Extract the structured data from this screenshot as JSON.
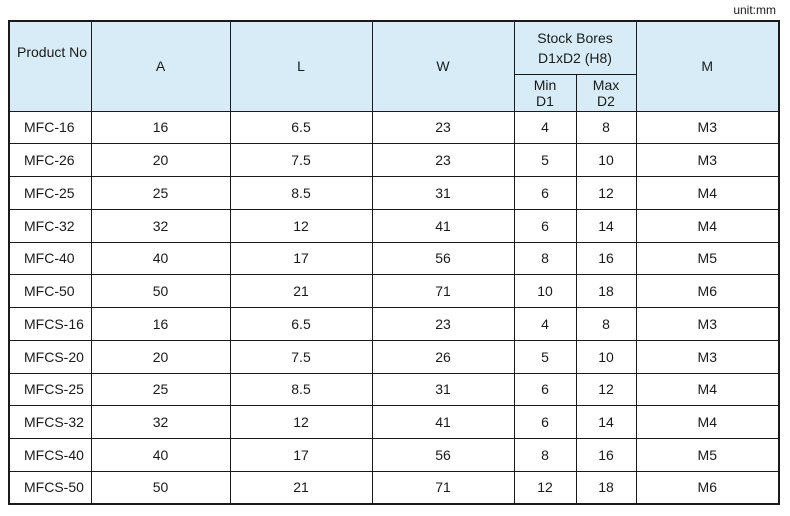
{
  "unit_label": "unit:mm",
  "headers": {
    "product_no": "Product No",
    "a": "A",
    "l": "L",
    "w": "W",
    "stock_bores_line1": "Stock Bores",
    "stock_bores_line2": "D1xD2 (H8)",
    "min_line1": "Min",
    "min_line2": "D1",
    "max_line1": "Max",
    "max_line2": "D2",
    "m": "M"
  },
  "rows": [
    {
      "product": "MFC-16",
      "a": "16",
      "l": "6.5",
      "w": "23",
      "min": "4",
      "max": "8",
      "m": "M3"
    },
    {
      "product": "MFC-26",
      "a": "20",
      "l": "7.5",
      "w": "23",
      "min": "5",
      "max": "10",
      "m": "M3"
    },
    {
      "product": "MFC-25",
      "a": "25",
      "l": "8.5",
      "w": "31",
      "min": "6",
      "max": "12",
      "m": "M4"
    },
    {
      "product": "MFC-32",
      "a": "32",
      "l": "12",
      "w": "41",
      "min": "6",
      "max": "14",
      "m": "M4"
    },
    {
      "product": "MFC-40",
      "a": "40",
      "l": "17",
      "w": "56",
      "min": "8",
      "max": "16",
      "m": "M5"
    },
    {
      "product": "MFC-50",
      "a": "50",
      "l": "21",
      "w": "71",
      "min": "10",
      "max": "18",
      "m": "M6"
    },
    {
      "product": "MFCS-16",
      "a": "16",
      "l": "6.5",
      "w": "23",
      "min": "4",
      "max": "8",
      "m": "M3"
    },
    {
      "product": "MFCS-20",
      "a": "20",
      "l": "7.5",
      "w": "26",
      "min": "5",
      "max": "10",
      "m": "M3"
    },
    {
      "product": "MFCS-25",
      "a": "25",
      "l": "8.5",
      "w": "31",
      "min": "6",
      "max": "12",
      "m": "M4"
    },
    {
      "product": "MFCS-32",
      "a": "32",
      "l": "12",
      "w": "41",
      "min": "6",
      "max": "14",
      "m": "M4"
    },
    {
      "product": "MFCS-40",
      "a": "40",
      "l": "17",
      "w": "56",
      "min": "8",
      "max": "16",
      "m": "M5"
    },
    {
      "product": "MFCS-50",
      "a": "50",
      "l": "21",
      "w": "71",
      "min": "12",
      "max": "18",
      "m": "M6"
    }
  ],
  "colors": {
    "header_bg": "#d7ecf7",
    "border": "#1a1a1a"
  }
}
